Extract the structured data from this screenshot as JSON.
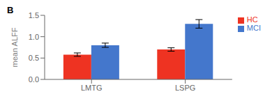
{
  "chart_data": {
    "type": "bar",
    "categories": [
      "LMTG",
      "LSPG"
    ],
    "series": [
      {
        "name": "HC",
        "color": "#EE3322",
        "values": [
          0.58,
          0.7
        ],
        "errors": [
          0.04,
          0.04
        ]
      },
      {
        "name": "MCI",
        "color": "#4477CC",
        "values": [
          0.8,
          1.3
        ],
        "errors": [
          0.05,
          0.1
        ]
      }
    ],
    "ylabel": "mean ALFF",
    "ylim": [
      0,
      1.5
    ],
    "yticks": [
      {
        "value": 0.0,
        "label": "0.0"
      },
      0.5,
      {
        "value": 1.0,
        "label": "1.0"
      },
      1.5
    ],
    "legend": "upper right",
    "annotations": [
      "B"
    ]
  }
}
